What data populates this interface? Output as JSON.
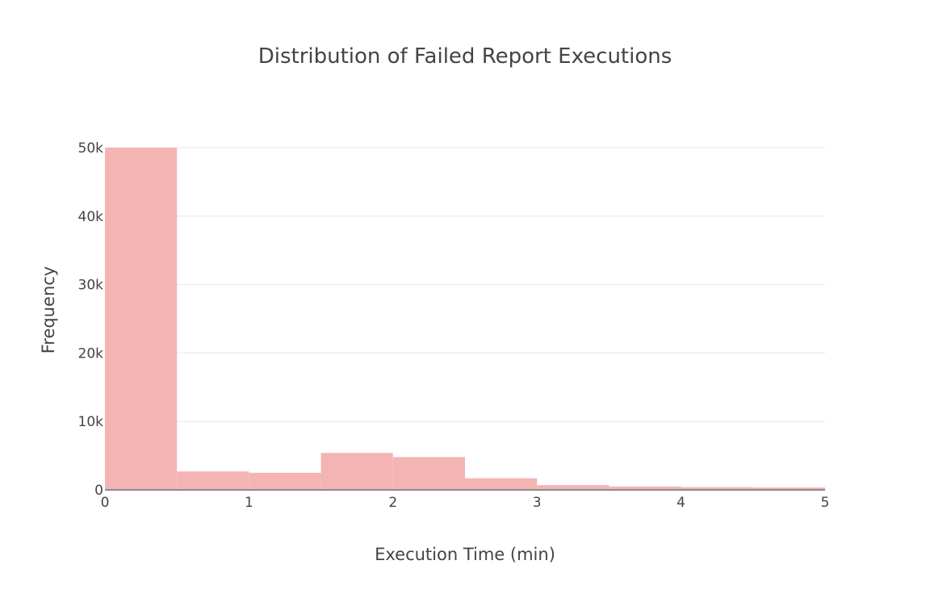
{
  "chart_data": {
    "type": "bar",
    "title": "Distribution of Failed Report Executions",
    "xlabel": "Execution Time (min)",
    "ylabel": "Frequency",
    "xlim": [
      0,
      5
    ],
    "ylim": [
      0,
      50000
    ],
    "x_ticks": [
      0,
      1,
      2,
      3,
      4,
      5
    ],
    "x_tick_labels": [
      "0",
      "1",
      "2",
      "3",
      "4",
      "5"
    ],
    "y_ticks": [
      0,
      10000,
      20000,
      30000,
      40000,
      50000
    ],
    "y_tick_labels": [
      "0",
      "10k",
      "20k",
      "30k",
      "40k",
      "50k"
    ],
    "grid": true,
    "bin_width": 0.5,
    "bars": [
      {
        "x0": 0.0,
        "x1": 0.5,
        "value": 50000
      },
      {
        "x0": 0.5,
        "x1": 1.0,
        "value": 2700
      },
      {
        "x0": 1.0,
        "x1": 1.5,
        "value": 2500
      },
      {
        "x0": 1.5,
        "x1": 2.0,
        "value": 5400
      },
      {
        "x0": 2.0,
        "x1": 2.5,
        "value": 4800
      },
      {
        "x0": 2.5,
        "x1": 3.0,
        "value": 1700
      },
      {
        "x0": 3.0,
        "x1": 3.5,
        "value": 700
      },
      {
        "x0": 3.5,
        "x1": 4.0,
        "value": 500
      },
      {
        "x0": 4.0,
        "x1": 4.5,
        "value": 400
      },
      {
        "x0": 4.5,
        "x1": 5.0,
        "value": 350
      }
    ],
    "colors": {
      "bar": "#f4b4b4",
      "grid": "#eeeeee",
      "baseline": "#8c8c8c"
    }
  }
}
